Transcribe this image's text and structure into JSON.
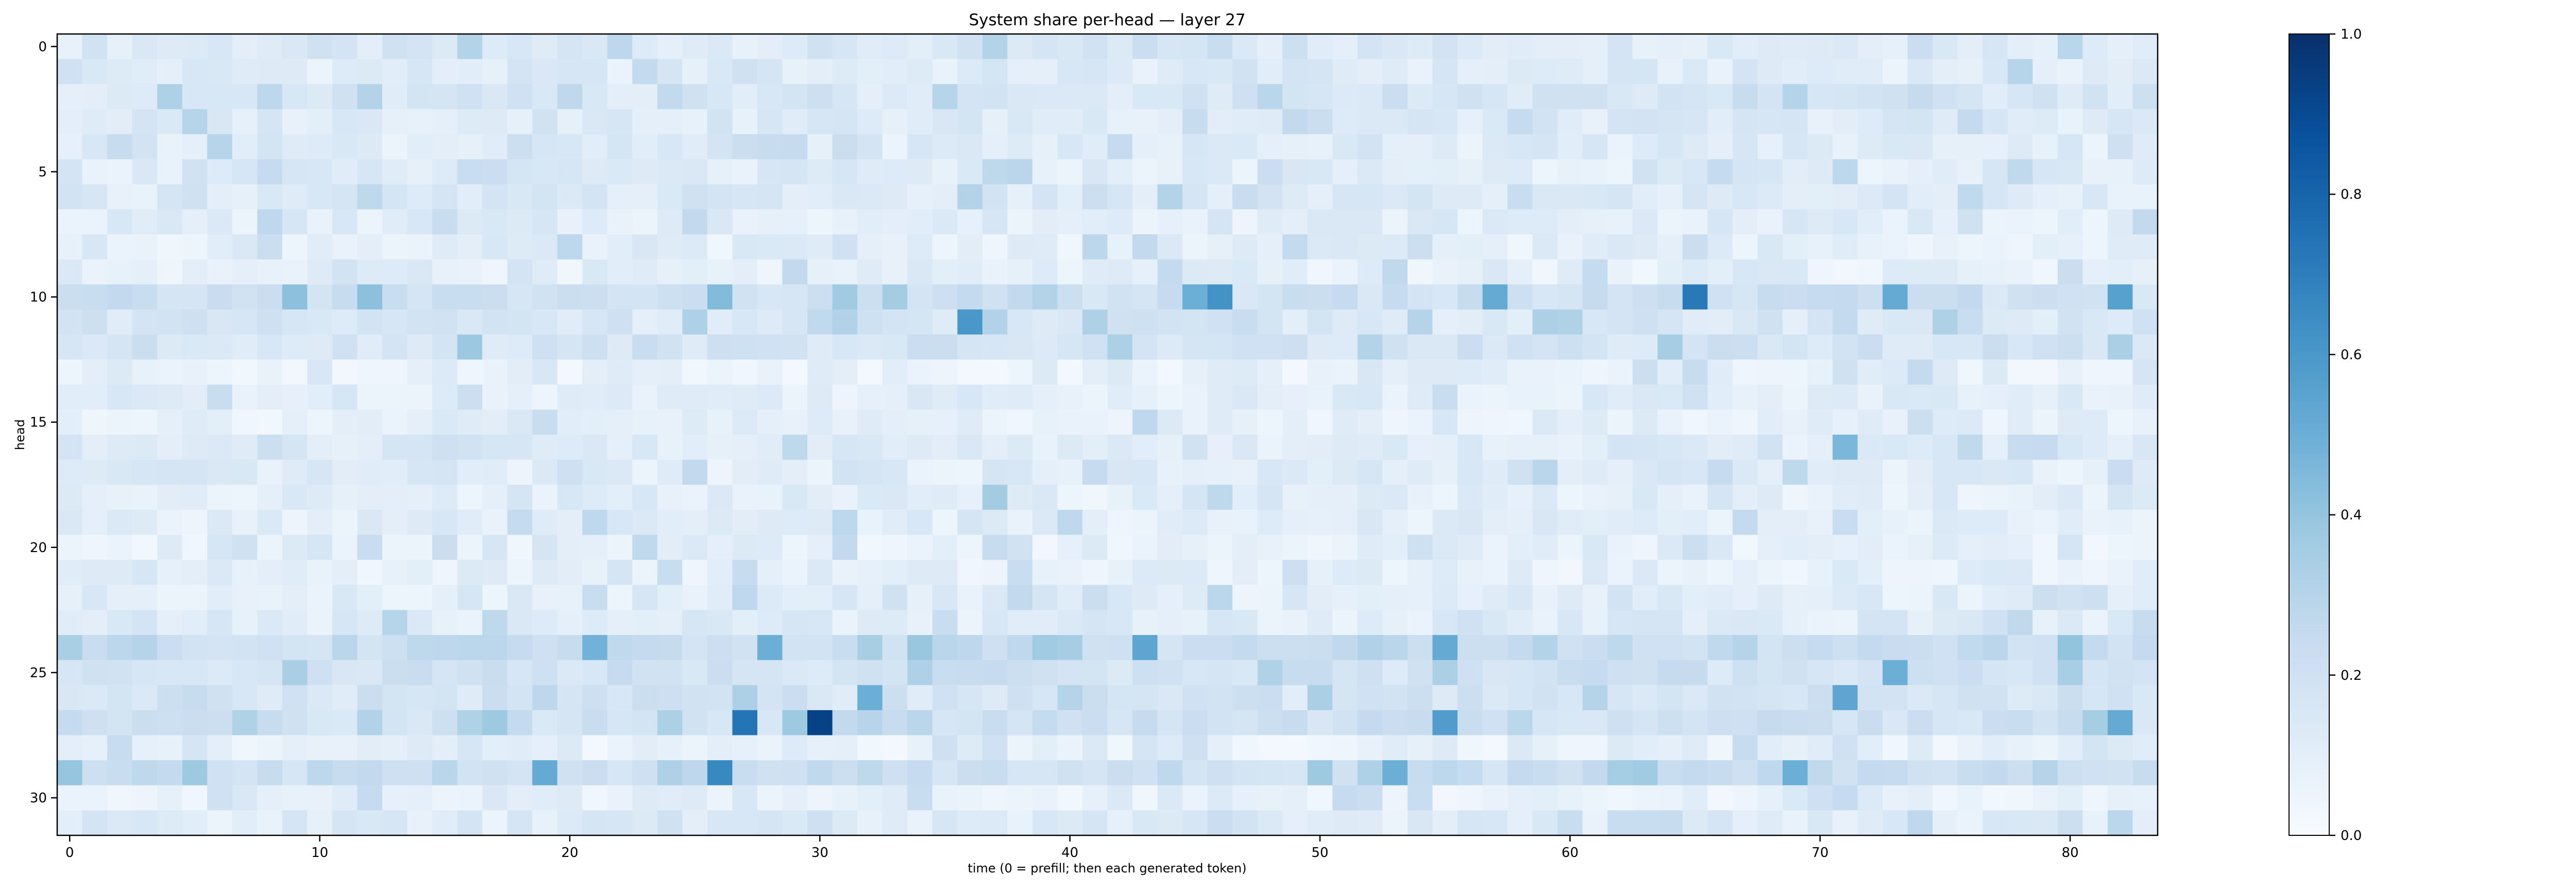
{
  "chart_data": {
    "type": "heatmap",
    "title": "System share per-head — layer 27",
    "xlabel": "time (0 = prefill; then each generated token)",
    "ylabel": "head",
    "x_count": 84,
    "y_count": 32,
    "x_ticks": [
      0,
      10,
      20,
      30,
      40,
      50,
      60,
      70,
      80
    ],
    "y_ticks": [
      0,
      5,
      10,
      15,
      20,
      25,
      30
    ],
    "colormap": "Blues",
    "color_low": "#f7fbff",
    "color_high": "#08306b",
    "vmin": 0.0,
    "vmax": 1.0,
    "colorbar_ticks": [
      0.0,
      0.2,
      0.4,
      0.6,
      0.8,
      1.0
    ],
    "colorbar_tick_labels": [
      "0.0",
      "0.2",
      "0.4",
      "0.6",
      "0.8",
      "1.0"
    ],
    "base_levels_by_head": [
      0.14,
      0.12,
      0.15,
      0.13,
      0.12,
      0.11,
      0.13,
      0.11,
      0.1,
      0.09,
      0.2,
      0.15,
      0.17,
      0.08,
      0.11,
      0.09,
      0.12,
      0.11,
      0.1,
      0.1,
      0.09,
      0.09,
      0.11,
      0.12,
      0.23,
      0.19,
      0.17,
      0.2,
      0.08,
      0.22,
      0.09,
      0.12
    ],
    "hotspots": [
      {
        "x": 27,
        "y": 27,
        "v": 0.74
      },
      {
        "x": 30,
        "y": 27,
        "v": 0.93
      },
      {
        "x": 26,
        "y": 29,
        "v": 0.66
      },
      {
        "x": 65,
        "y": 10,
        "v": 0.72
      },
      {
        "x": 46,
        "y": 10,
        "v": 0.62
      },
      {
        "x": 36,
        "y": 11,
        "v": 0.6
      },
      {
        "x": 82,
        "y": 10,
        "v": 0.56
      },
      {
        "x": 57,
        "y": 10,
        "v": 0.52
      },
      {
        "x": 73,
        "y": 10,
        "v": 0.52
      },
      {
        "x": 45,
        "y": 10,
        "v": 0.5
      },
      {
        "x": 43,
        "y": 24,
        "v": 0.54
      },
      {
        "x": 55,
        "y": 24,
        "v": 0.52
      },
      {
        "x": 28,
        "y": 24,
        "v": 0.5
      },
      {
        "x": 21,
        "y": 24,
        "v": 0.48
      },
      {
        "x": 55,
        "y": 27,
        "v": 0.58
      },
      {
        "x": 82,
        "y": 27,
        "v": 0.52
      },
      {
        "x": 71,
        "y": 26,
        "v": 0.54
      },
      {
        "x": 32,
        "y": 26,
        "v": 0.5
      },
      {
        "x": 73,
        "y": 25,
        "v": 0.5
      },
      {
        "x": 19,
        "y": 29,
        "v": 0.52
      },
      {
        "x": 53,
        "y": 29,
        "v": 0.5
      },
      {
        "x": 69,
        "y": 29,
        "v": 0.5
      },
      {
        "x": 71,
        "y": 16,
        "v": 0.46
      },
      {
        "x": 9,
        "y": 10,
        "v": 0.42
      },
      {
        "x": 12,
        "y": 10,
        "v": 0.42
      },
      {
        "x": 26,
        "y": 10,
        "v": 0.44
      },
      {
        "x": 16,
        "y": 12,
        "v": 0.38
      },
      {
        "x": 37,
        "y": 18,
        "v": 0.36
      }
    ]
  }
}
